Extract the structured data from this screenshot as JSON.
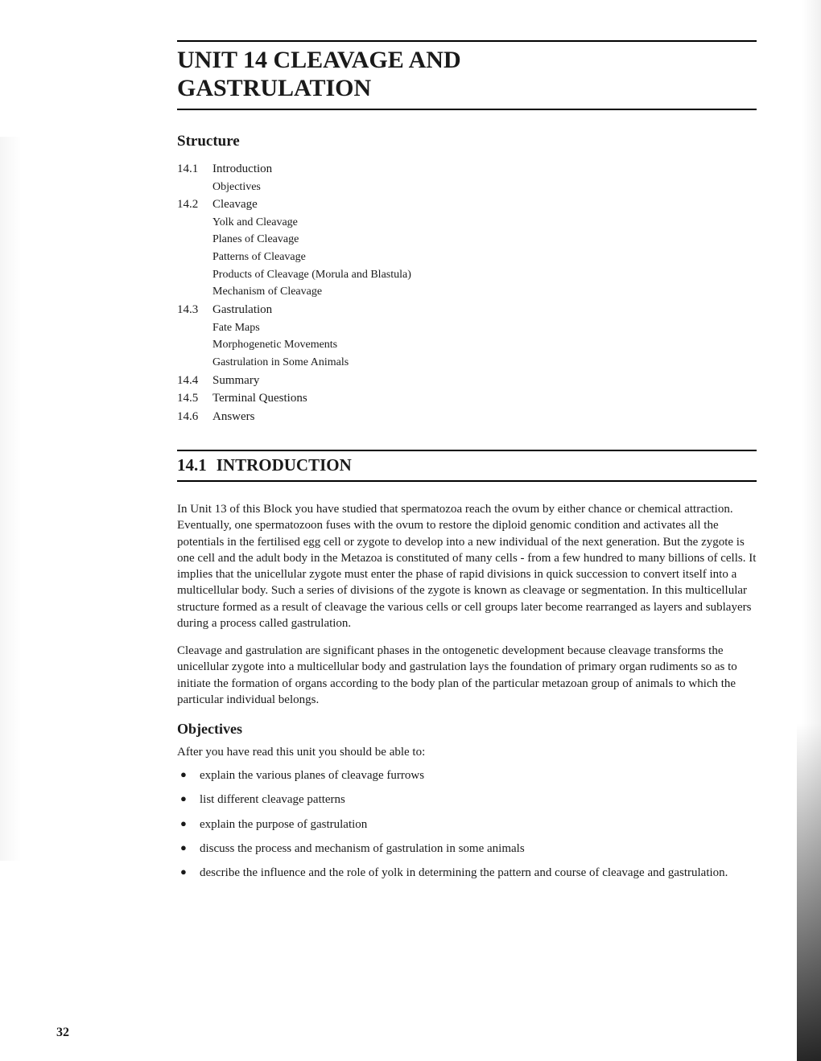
{
  "title_line1": "UNIT 14  CLEAVAGE AND\n                  GASTRULATION",
  "structure_heading": "Structure",
  "toc": [
    {
      "num": "14.1",
      "label": "Introduction",
      "subs": [
        "Objectives"
      ]
    },
    {
      "num": "14.2",
      "label": "Cleavage",
      "subs": [
        "Yolk and Cleavage",
        "Planes of Cleavage",
        "Patterns of Cleavage",
        "Products of Cleavage (Morula and Blastula)",
        "Mechanism of Cleavage"
      ]
    },
    {
      "num": "14.3",
      "label": "Gastrulation",
      "subs": [
        "Fate Maps",
        "Morphogenetic Movements",
        "Gastrulation in Some Animals"
      ]
    },
    {
      "num": "14.4",
      "label": "Summary",
      "subs": []
    },
    {
      "num": "14.5",
      "label": "Terminal Questions",
      "subs": []
    },
    {
      "num": "14.6",
      "label": "Answers",
      "subs": []
    }
  ],
  "section_num": "14.1",
  "section_label": "INTRODUCTION",
  "para1": "In Unit 13 of this Block you have studied that spermatozoa reach the ovum by either chance or chemical attraction. Eventually, one spermatozoon fuses with the ovum to restore the diploid genomic condition and activates all the potentials in the fertilised egg cell or zygote to develop into a new individual of the next generation. But the zygote is one cell and the adult body in the Metazoa is constituted of many cells - from a few hundred to many billions of cells. It implies that the unicellular zygote must enter the phase of rapid divisions in quick succession to convert itself into a multicellular body. Such a series of divisions of the zygote is known as cleavage or segmentation. In this multicellular structure formed as a result of cleavage the various cells or cell groups later become rearranged as layers and sublayers during a process called gastrulation.",
  "para2": "Cleavage and gastrulation are significant phases in the ontogenetic development because cleavage transforms the unicellular zygote into a multicellular body and gastrulation lays the foundation of primary organ rudiments so as to initiate the formation of organs according to the body plan of the particular metazoan group of animals to which the particular individual belongs.",
  "objectives_heading": "Objectives",
  "objectives_intro": "After you have read this unit you should be able to:",
  "objectives": [
    "explain the various planes of cleavage furrows",
    "list different cleavage patterns",
    "explain the purpose of gastrulation",
    "discuss the process and mechanism of gastrulation in some animals",
    "describe the influence and the role of yolk in determining the pattern and course of cleavage and gastrulation."
  ],
  "page_number": "32"
}
